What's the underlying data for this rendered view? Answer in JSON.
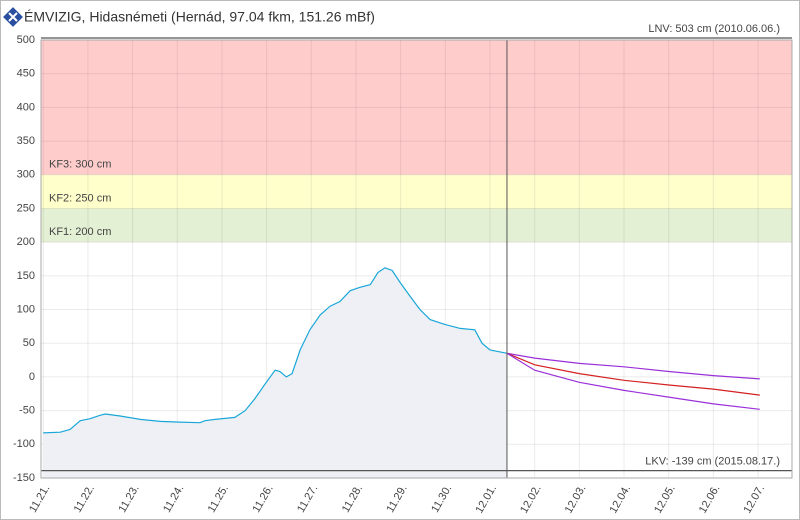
{
  "chart_data": {
    "type": "line",
    "title": "ÉMVIZIG, Hidasnémeti (Hernád, 97.04 fkm, 151.26 mBf)",
    "xlim": [
      -0.05,
      16.76
    ],
    "ylim": [
      -150,
      500
    ],
    "yticks": [
      -150,
      -100,
      -50,
      0,
      50,
      100,
      150,
      200,
      250,
      300,
      350,
      400,
      450,
      500
    ],
    "xticks": [
      {
        "value": 0,
        "label": "11.21."
      },
      {
        "value": 1,
        "label": "11.22."
      },
      {
        "value": 2,
        "label": "11.23."
      },
      {
        "value": 3,
        "label": "11.24."
      },
      {
        "value": 4,
        "label": "11.25."
      },
      {
        "value": 5,
        "label": "11.26."
      },
      {
        "value": 6,
        "label": "11.27."
      },
      {
        "value": 7,
        "label": "11.28."
      },
      {
        "value": 8,
        "label": "11.29."
      },
      {
        "value": 9,
        "label": "11.30."
      },
      {
        "value": 10,
        "label": "12.01."
      },
      {
        "value": 11,
        "label": "12.02."
      },
      {
        "value": 12,
        "label": "12.03."
      },
      {
        "value": 13,
        "label": "12.04."
      },
      {
        "value": 14,
        "label": "12.05."
      },
      {
        "value": 15,
        "label": "12.06."
      },
      {
        "value": 16,
        "label": "12.07."
      }
    ],
    "grid": true,
    "bands": [
      {
        "label": "KF3: 300 cm",
        "value": 300,
        "color": "#ffcccc"
      },
      {
        "label": "KF2: 250 cm",
        "value": 250,
        "color": "#ffffcc"
      },
      {
        "label": "KF1: 200 cm",
        "value": 200,
        "color": "#e4f0d4"
      }
    ],
    "reference_lines": [
      {
        "label": "LNV: 503 cm (2010.06.06.)",
        "value": 503
      },
      {
        "label": "LKV: -139 cm (2015.08.17.)",
        "value": -139
      }
    ],
    "now": 10.38,
    "series": [
      {
        "color": "#1aa7d8",
        "fill": "#eef0f5",
        "x": [
          0,
          0.38,
          0.6,
          0.83,
          1.05,
          1.27,
          1.39,
          1.72,
          2.17,
          2.62,
          3.06,
          3.51,
          3.62,
          3.85,
          4.29,
          4.52,
          4.74,
          4.97,
          5.19,
          5.3,
          5.44,
          5.57,
          5.75,
          5.97,
          6.2,
          6.42,
          6.64,
          6.87,
          7.09,
          7.32,
          7.49,
          7.65,
          7.81,
          7.99,
          8.21,
          8.43,
          8.66,
          8.99,
          9.33,
          9.66,
          9.82,
          10,
          10.38
        ],
        "values": [
          -83,
          -82,
          -78,
          -65,
          -62,
          -57,
          -55,
          -58,
          -63,
          -66,
          -67,
          -68,
          -65,
          -63,
          -60,
          -50,
          -32,
          -10,
          10,
          8,
          0,
          5,
          40,
          70,
          92,
          105,
          112,
          128,
          133,
          137,
          155,
          162,
          158,
          140,
          120,
          100,
          85,
          78,
          72,
          70,
          50,
          40,
          35
        ]
      },
      {
        "color": "#9b30d9",
        "x": [
          10.38,
          11,
          12,
          13,
          14,
          15,
          16.04
        ],
        "values": [
          35,
          28,
          20,
          15,
          8,
          2,
          -3
        ]
      },
      {
        "color": "#d42020",
        "x": [
          10.38,
          11,
          12,
          13,
          14,
          15,
          16.04
        ],
        "values": [
          35,
          18,
          5,
          -5,
          -12,
          -18,
          -27
        ]
      },
      {
        "color": "#9b30d9",
        "x": [
          10.38,
          11,
          12,
          13,
          14,
          15,
          16.04
        ],
        "values": [
          35,
          10,
          -8,
          -20,
          -30,
          -40,
          -48
        ]
      }
    ]
  }
}
